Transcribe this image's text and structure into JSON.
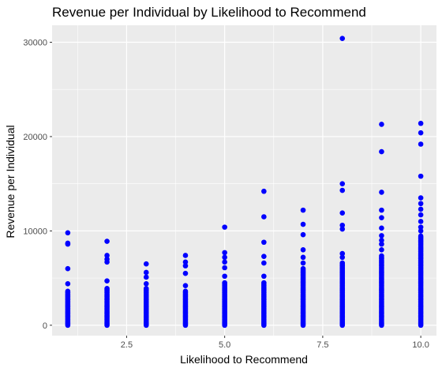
{
  "chart_data": {
    "type": "scatter",
    "title": "Revenue per Individual by Likelihood to Recommend",
    "xlabel": "Likelihood to Recommend",
    "ylabel": "Revenue per Individual",
    "xlim": [
      0.6,
      10.4
    ],
    "ylim": [
      -1100,
      31800
    ],
    "x_ticks": [
      2.5,
      5.0,
      7.5,
      10.0
    ],
    "x_tick_labels": [
      "2.5",
      "5.0",
      "7.5",
      "10.0"
    ],
    "y_ticks": [
      0,
      10000,
      20000,
      30000
    ],
    "y_tick_labels": [
      "0",
      "10000",
      "20000",
      "30000"
    ],
    "grid": true,
    "legend": "none",
    "point_color": "#0000ff",
    "panel_color": "#ebebeb",
    "columns": [
      {
        "x": 1,
        "dense_max": 3600,
        "outliers": [
          4400,
          6000,
          8600,
          8700,
          9800
        ]
      },
      {
        "x": 2,
        "dense_max": 3900,
        "outliers": [
          4700,
          6700,
          7000,
          7400,
          8900
        ]
      },
      {
        "x": 3,
        "dense_max": 3900,
        "outliers": [
          4400,
          5100,
          5600,
          6500
        ]
      },
      {
        "x": 4,
        "dense_max": 3600,
        "outliers": [
          4200,
          5500,
          6300,
          6700,
          7400
        ]
      },
      {
        "x": 5,
        "dense_max": 4500,
        "outliers": [
          5200,
          6100,
          6700,
          7200,
          7700,
          10400
        ]
      },
      {
        "x": 6,
        "dense_max": 4500,
        "outliers": [
          5200,
          6600,
          7300,
          8800,
          11500,
          14200
        ]
      },
      {
        "x": 7,
        "dense_max": 6000,
        "outliers": [
          6600,
          7200,
          8000,
          9600,
          10700,
          12200
        ]
      },
      {
        "x": 8,
        "dense_max": 6600,
        "outliers": [
          7200,
          7600,
          10200,
          10600,
          11900,
          14300,
          15000,
          30400
        ]
      },
      {
        "x": 9,
        "dense_max": 7400,
        "outliers": [
          8000,
          8600,
          9000,
          9500,
          10300,
          11400,
          12200,
          14100,
          18400,
          21300
        ]
      },
      {
        "x": 10,
        "dense_max": 9500,
        "outliers": [
          10000,
          10400,
          11000,
          11700,
          12300,
          12900,
          13500,
          15800,
          19200,
          20400,
          21400
        ]
      }
    ]
  }
}
